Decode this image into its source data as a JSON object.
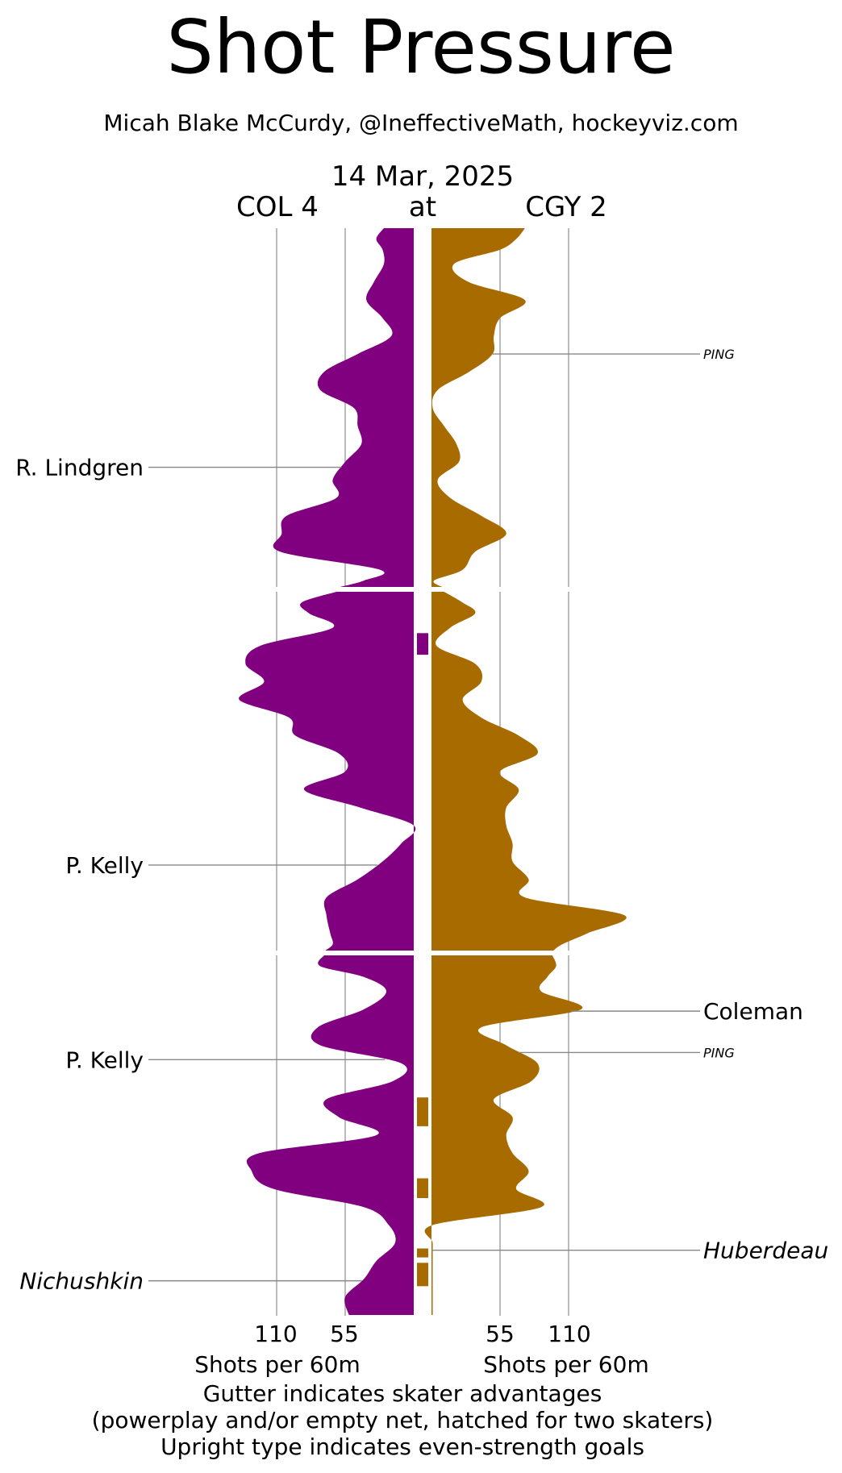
{
  "chart_data": {
    "type": "area",
    "title": "Shot Pressure",
    "subtitle": "Micah Blake McCurdy, @IneffectiveMath, hockeyviz.com",
    "date": "14 Mar, 2025",
    "away_label": "COL 4",
    "at_label": "at",
    "home_label": "CGY 2",
    "x_ticks": {
      "away": [
        "110",
        "55"
      ],
      "home": [
        "55",
        "110"
      ]
    },
    "x_tick_values": [
      55,
      110
    ],
    "x_axis_label": "Shots per 60m",
    "footer_lines": [
      "Gutter indicates skater advantages",
      "(powerplay and/or empty net, hatched for two skaters)",
      "Upright type indicates even-strength goals"
    ],
    "colors": {
      "COL": "#800080",
      "CGY": "#a86b00",
      "grid": "#aaaaaa"
    },
    "periods": 3,
    "period_minutes": 20,
    "series": [
      {
        "name": "COL 4",
        "side": "left",
        "minutes": [
          0,
          0.6,
          1.2,
          2,
          3,
          4,
          5,
          6,
          7,
          8,
          9,
          10,
          11,
          12,
          13,
          14,
          15,
          16,
          17,
          18,
          19,
          19.6,
          20,
          20.6,
          21.2,
          22,
          23,
          24,
          25,
          26,
          27,
          28,
          29,
          30,
          31,
          32,
          33,
          34,
          35,
          36,
          37,
          38,
          39,
          39.6,
          40,
          40.6,
          41.2,
          42,
          43,
          44,
          45,
          46,
          47,
          48,
          49,
          50,
          51,
          52,
          53,
          54,
          55,
          56,
          57,
          58,
          59,
          60
        ],
        "values": [
          24,
          30,
          25,
          24,
          32,
          38,
          25,
          18,
          45,
          72,
          75,
          48,
          45,
          42,
          55,
          65,
          62,
          102,
          106,
          107,
          27,
          40,
          62,
          90,
          84,
          65,
          123,
          135,
          120,
          140,
          100,
          95,
          60,
          55,
          88,
          43,
          0,
          10,
          25,
          45,
          70,
          70,
          67,
          65,
          72,
          75,
          40,
          22,
          40,
          77,
          75,
          10,
          17,
          70,
          60,
          30,
          124,
          130,
          112,
          40,
          20,
          15,
          30,
          40,
          55,
          52
        ]
      },
      {
        "name": "CGY 2",
        "side": "right",
        "minutes": [
          0,
          0.6,
          1.2,
          2,
          3,
          4,
          5,
          6,
          7,
          8,
          9,
          10,
          11,
          12,
          13,
          14,
          15,
          16,
          17,
          18,
          19,
          19.6,
          20,
          20.6,
          21.2,
          22,
          23,
          24,
          25,
          26,
          27,
          28,
          29,
          30,
          31,
          32,
          33,
          34,
          35,
          36,
          37,
          38,
          39,
          39.6,
          40,
          40.6,
          41.2,
          42,
          43,
          44,
          45,
          46,
          47,
          48,
          49,
          50,
          51,
          52,
          53,
          54,
          55,
          56,
          57,
          58,
          59,
          60
        ],
        "values": [
          75,
          68,
          55,
          18,
          30,
          75,
          55,
          50,
          49,
          30,
          5,
          1,
          10,
          20,
          22,
          5,
          15,
          40,
          60,
          35,
          25,
          2,
          10,
          25,
          35,
          15,
          4,
          35,
          40,
          25,
          40,
          70,
          85,
          55,
          70,
          60,
          60,
          65,
          65,
          78,
          75,
          155,
          125,
          105,
          97,
          100,
          93,
          88,
          120,
          40,
          60,
          85,
          80,
          50,
          65,
          60,
          65,
          78,
          68,
          88,
          1,
          1,
          1,
          1,
          1,
          1
        ]
      }
    ],
    "advantages": [
      {
        "team": "COL",
        "start_min": 22.3,
        "end_min": 23.5
      },
      {
        "team": "CGY",
        "start_min": 47.9,
        "end_min": 49.5
      },
      {
        "team": "CGY",
        "start_min": 52.4,
        "end_min": 53.5
      },
      {
        "team": "CGY",
        "start_min": 56.3,
        "end_min": 56.8
      },
      {
        "team": "CGY",
        "start_min": 57.1,
        "end_min": 58.4
      }
    ],
    "goals": [
      {
        "team": "CGY",
        "label": "PING",
        "minute": 7,
        "even_strength": false,
        "tag": "small"
      },
      {
        "team": "COL",
        "label": "R. Lindgren",
        "minute": 13.3,
        "even_strength": true,
        "tag": "regular"
      },
      {
        "team": "COL",
        "label": "P. Kelly",
        "minute": 35.2,
        "even_strength": true,
        "tag": "regular"
      },
      {
        "team": "CGY",
        "label": "Coleman",
        "minute": 43.1,
        "even_strength": true,
        "tag": "regular"
      },
      {
        "team": "CGY",
        "label": "PING",
        "minute": 45.4,
        "even_strength": false,
        "tag": "small"
      },
      {
        "team": "COL",
        "label": "P. Kelly",
        "minute": 45.8,
        "even_strength": true,
        "tag": "regular"
      },
      {
        "team": "CGY",
        "label": "Huberdeau",
        "minute": 56.4,
        "even_strength": false,
        "tag": "regular"
      },
      {
        "team": "COL",
        "label": "Nichushkin",
        "minute": 58.1,
        "even_strength": false,
        "tag": "regular"
      }
    ]
  }
}
